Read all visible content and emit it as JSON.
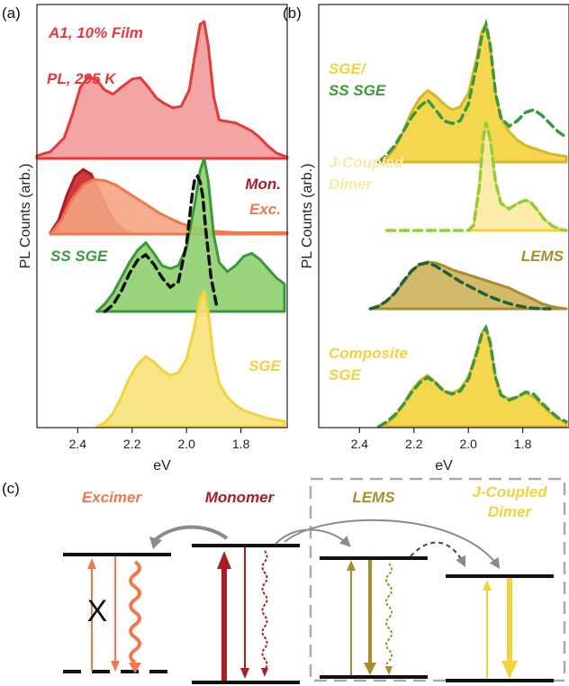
{
  "panel_labels": {
    "a": "(a)",
    "b": "(b)",
    "c": "(c)"
  },
  "colors": {
    "pl_red": "#e8393a",
    "pl_red_fill": "#f29a9a",
    "monomer_dark": "#a81e24",
    "excimer_orange": "#f2784b",
    "excimer_fill": "#f6b79c",
    "green": "#3a9a3a",
    "green_fill": "#8fcf6e",
    "yellow": "#f4d23c",
    "yellow_fill": "#f7e27a",
    "olive": "#a98d2c",
    "olive_fill": "#cdb35a",
    "light_yellow": "#fbeaa3",
    "gray": "#8a8a8a",
    "black": "#111111"
  },
  "chart_data": [
    {
      "type": "area",
      "panel": "a",
      "xlabel": "eV",
      "ylabel": "PL Counts (arb.)",
      "xlim": [
        2.55,
        1.63
      ],
      "xticks": [
        2.4,
        2.2,
        2.0,
        1.8
      ],
      "xticklabels": [
        "2.4",
        "2.2",
        "2.0",
        "1.8"
      ],
      "annotations": [
        {
          "text": "A1, 10% Film",
          "color": "#e8393a"
        },
        {
          "text": "PL, 295 K",
          "color": "#e8393a"
        },
        {
          "text": "Mon.",
          "color": "#a81e24"
        },
        {
          "text": "Exc.",
          "color": "#f2784b"
        },
        {
          "text": "SS SGE",
          "color": "#3a9a3a"
        },
        {
          "text": "SGE",
          "color": "#f4d23c"
        }
      ],
      "series": [
        {
          "name": "PL, 295 K",
          "style": "filled",
          "stroke": "#e8393a",
          "fill": "#f29a9a",
          "x": [
            2.55,
            2.5,
            2.45,
            2.42,
            2.39,
            2.36,
            2.33,
            2.3,
            2.27,
            2.24,
            2.2,
            2.17,
            2.14,
            2.11,
            2.08,
            2.05,
            2.02,
            1.99,
            1.97,
            1.95,
            1.935,
            1.92,
            1.9,
            1.88,
            1.85,
            1.82,
            1.79,
            1.76,
            1.73,
            1.7,
            1.67,
            1.63
          ],
          "y": [
            0.02,
            0.05,
            0.15,
            0.32,
            0.52,
            0.6,
            0.57,
            0.5,
            0.47,
            0.52,
            0.58,
            0.59,
            0.52,
            0.44,
            0.4,
            0.37,
            0.38,
            0.5,
            0.75,
            0.98,
            1.0,
            0.82,
            0.45,
            0.28,
            0.27,
            0.26,
            0.23,
            0.2,
            0.15,
            0.09,
            0.04,
            0.01
          ]
        },
        {
          "name": "Mon.",
          "style": "filled",
          "stroke": "#a81e24",
          "fill": "#c7232a",
          "x": [
            2.5,
            2.47,
            2.44,
            2.41,
            2.38,
            2.35,
            2.32,
            2.29,
            2.26,
            2.23,
            2.2
          ],
          "y": [
            0.02,
            0.2,
            0.55,
            0.82,
            0.92,
            0.85,
            0.6,
            0.35,
            0.15,
            0.05,
            0.0
          ]
        },
        {
          "name": "Exc.",
          "style": "filled",
          "stroke": "#f2784b",
          "fill": "#f4a383",
          "x": [
            2.5,
            2.46,
            2.42,
            2.38,
            2.34,
            2.3,
            2.26,
            2.22,
            2.18,
            2.14,
            2.1,
            2.06,
            2.02,
            1.98,
            1.94,
            1.9,
            1.86,
            1.82,
            1.78,
            1.74,
            1.7,
            1.66,
            1.63
          ],
          "y": [
            0.0,
            0.2,
            0.5,
            0.7,
            0.78,
            0.76,
            0.7,
            0.6,
            0.5,
            0.4,
            0.3,
            0.22,
            0.15,
            0.1,
            0.06,
            0.04,
            0.03,
            0.02,
            0.02,
            0.02,
            0.02,
            0.02,
            0.02
          ]
        },
        {
          "name": "SS SGE",
          "style": "filled",
          "stroke": "#3a9a3a",
          "fill": "#8fcf6e",
          "x": [
            2.33,
            2.3,
            2.27,
            2.24,
            2.21,
            2.18,
            2.15,
            2.12,
            2.09,
            2.06,
            2.03,
            2.0,
            1.97,
            1.95,
            1.935,
            1.92,
            1.9,
            1.88,
            1.85,
            1.82,
            1.79,
            1.76,
            1.73,
            1.7,
            1.67,
            1.64
          ],
          "y": [
            0.0,
            0.05,
            0.12,
            0.22,
            0.32,
            0.4,
            0.45,
            0.38,
            0.3,
            0.28,
            0.3,
            0.42,
            0.7,
            0.92,
            1.0,
            0.85,
            0.5,
            0.32,
            0.26,
            0.3,
            0.36,
            0.38,
            0.34,
            0.28,
            0.22,
            0.18
          ]
        },
        {
          "name": "",
          "style": "dashed",
          "stroke": "#111111",
          "x": [
            2.3,
            2.27,
            2.24,
            2.21,
            2.18,
            2.15,
            2.12,
            2.09,
            2.06,
            2.03,
            2.0,
            1.98,
            1.97,
            1.96,
            1.95,
            1.94,
            1.93,
            1.91,
            1.89
          ],
          "y": [
            0.0,
            0.05,
            0.15,
            0.28,
            0.38,
            0.42,
            0.35,
            0.25,
            0.18,
            0.22,
            0.5,
            0.85,
            0.98,
            1.0,
            0.96,
            0.85,
            0.62,
            0.25,
            0.05
          ]
        },
        {
          "name": "SGE",
          "style": "filled",
          "stroke": "#f4d23c",
          "fill": "#f7e27a",
          "x": [
            2.33,
            2.3,
            2.27,
            2.24,
            2.21,
            2.18,
            2.15,
            2.12,
            2.09,
            2.06,
            2.03,
            2.0,
            1.97,
            1.95,
            1.935,
            1.92,
            1.9,
            1.88,
            1.85,
            1.82,
            1.79,
            1.76,
            1.73,
            1.7,
            1.67,
            1.64
          ],
          "y": [
            0.0,
            0.03,
            0.1,
            0.22,
            0.36,
            0.46,
            0.52,
            0.48,
            0.42,
            0.38,
            0.4,
            0.5,
            0.75,
            0.95,
            1.0,
            0.85,
            0.5,
            0.32,
            0.22,
            0.16,
            0.12,
            0.1,
            0.08,
            0.06,
            0.05,
            0.04
          ]
        }
      ]
    },
    {
      "type": "area",
      "panel": "b",
      "xlabel": "eV",
      "ylabel": "PL Counts (arb.)",
      "xlim": [
        2.55,
        1.63
      ],
      "xticks": [
        2.4,
        2.2,
        2.0,
        1.8
      ],
      "xticklabels": [
        "2.4",
        "2.2",
        "2.0",
        "1.8"
      ],
      "annotations": [
        {
          "text": "SGE/",
          "color": "#f4d23c"
        },
        {
          "text": "SS SGE",
          "color": "#3a9a3a"
        },
        {
          "text": "J-Coupled",
          "color": "#fbeaa3"
        },
        {
          "text": "Dimer",
          "color": "#fbeaa3"
        },
        {
          "text": "LEMS",
          "color": "#a98d2c"
        },
        {
          "text": "Composite",
          "color": "#f4d23c"
        },
        {
          "text": "SGE",
          "color": "#f4d23c"
        }
      ],
      "series": [
        {
          "name": "SGE",
          "style": "filled",
          "stroke": "#d9b52c",
          "fill": "#f4d23c",
          "x": [
            2.33,
            2.3,
            2.27,
            2.24,
            2.21,
            2.18,
            2.15,
            2.12,
            2.09,
            2.06,
            2.03,
            2.0,
            1.97,
            1.95,
            1.935,
            1.92,
            1.9,
            1.88,
            1.85,
            1.82,
            1.79,
            1.76,
            1.73,
            1.7,
            1.67,
            1.64
          ],
          "y": [
            0.0,
            0.03,
            0.1,
            0.22,
            0.36,
            0.46,
            0.52,
            0.48,
            0.42,
            0.38,
            0.4,
            0.5,
            0.75,
            0.95,
            1.0,
            0.85,
            0.5,
            0.32,
            0.22,
            0.16,
            0.12,
            0.1,
            0.08,
            0.06,
            0.05,
            0.04
          ]
        },
        {
          "name": "SS SGE",
          "style": "dashed",
          "stroke": "#3a9a3a",
          "x": [
            2.33,
            2.3,
            2.27,
            2.24,
            2.21,
            2.18,
            2.15,
            2.12,
            2.09,
            2.06,
            2.03,
            2.0,
            1.97,
            1.95,
            1.935,
            1.92,
            1.9,
            1.88,
            1.85,
            1.82,
            1.79,
            1.76,
            1.73,
            1.7,
            1.67,
            1.64
          ],
          "y": [
            0.0,
            0.05,
            0.12,
            0.22,
            0.32,
            0.4,
            0.45,
            0.38,
            0.3,
            0.28,
            0.3,
            0.42,
            0.7,
            0.92,
            1.0,
            0.85,
            0.5,
            0.32,
            0.26,
            0.3,
            0.36,
            0.38,
            0.34,
            0.28,
            0.22,
            0.18
          ]
        },
        {
          "name": "J-Coupled Dimer",
          "style": "filled",
          "stroke": "#f4d23c",
          "fill": "#fbeaa3",
          "x": [
            2.0,
            1.98,
            1.96,
            1.945,
            1.935,
            1.92,
            1.9,
            1.88,
            1.85,
            1.82,
            1.79,
            1.77,
            1.75,
            1.72,
            1.69,
            1.66,
            1.64
          ],
          "y": [
            0.0,
            0.05,
            0.4,
            0.85,
            1.0,
            0.85,
            0.45,
            0.25,
            0.2,
            0.25,
            0.28,
            0.26,
            0.2,
            0.1,
            0.04,
            0.01,
            0.0
          ]
        },
        {
          "name": "",
          "style": "dashed",
          "stroke": "#8fcf3a",
          "x": [
            2.3,
            2.25,
            2.2,
            2.15,
            2.1,
            2.05,
            2.0,
            1.98,
            1.96,
            1.945,
            1.935,
            1.92,
            1.9,
            1.88,
            1.85,
            1.82,
            1.79,
            1.77,
            1.75,
            1.72,
            1.69,
            1.66,
            1.64
          ],
          "y": [
            0.0,
            0.0,
            0.0,
            0.0,
            0.0,
            0.0,
            0.0,
            0.05,
            0.4,
            0.85,
            1.0,
            0.85,
            0.45,
            0.25,
            0.2,
            0.25,
            0.28,
            0.26,
            0.2,
            0.1,
            0.04,
            0.01,
            0.0
          ]
        },
        {
          "name": "LEMS",
          "style": "filled",
          "stroke": "#a98d2c",
          "fill": "#cdb35a",
          "x": [
            2.36,
            2.33,
            2.3,
            2.27,
            2.24,
            2.21,
            2.18,
            2.15,
            2.12,
            2.09,
            2.06,
            2.03,
            2.0,
            1.97,
            1.94,
            1.91,
            1.88,
            1.85,
            1.82,
            1.79,
            1.76,
            1.73,
            1.7,
            1.67,
            1.64
          ],
          "y": [
            0.0,
            0.05,
            0.15,
            0.3,
            0.5,
            0.7,
            0.85,
            0.9,
            0.88,
            0.82,
            0.75,
            0.7,
            0.65,
            0.6,
            0.55,
            0.5,
            0.45,
            0.4,
            0.32,
            0.25,
            0.18,
            0.1,
            0.05,
            0.02,
            0.0
          ]
        },
        {
          "name": "",
          "style": "dashed",
          "stroke": "#1f5f3a",
          "x": [
            2.36,
            2.33,
            2.3,
            2.27,
            2.24,
            2.21,
            2.18,
            2.15,
            2.12,
            2.09,
            2.06,
            2.03,
            2.0,
            1.97,
            1.94,
            1.91,
            1.88,
            1.85,
            1.82,
            1.79,
            1.76,
            1.73,
            1.7
          ],
          "y": [
            0.0,
            0.05,
            0.15,
            0.3,
            0.52,
            0.72,
            0.85,
            0.88,
            0.82,
            0.72,
            0.62,
            0.52,
            0.44,
            0.36,
            0.28,
            0.21,
            0.15,
            0.1,
            0.06,
            0.03,
            0.01,
            0.0,
            0.0
          ]
        },
        {
          "name": "Composite SGE",
          "style": "filled",
          "stroke": "#d9b52c",
          "fill": "#f4d23c",
          "x": [
            2.33,
            2.3,
            2.27,
            2.24,
            2.21,
            2.18,
            2.15,
            2.12,
            2.09,
            2.06,
            2.03,
            2.0,
            1.97,
            1.95,
            1.935,
            1.92,
            1.9,
            1.88,
            1.85,
            1.82,
            1.79,
            1.76,
            1.73,
            1.7,
            1.67,
            1.64
          ],
          "y": [
            0.0,
            0.03,
            0.1,
            0.22,
            0.36,
            0.46,
            0.52,
            0.45,
            0.36,
            0.34,
            0.38,
            0.5,
            0.75,
            0.95,
            1.0,
            0.85,
            0.5,
            0.32,
            0.28,
            0.3,
            0.34,
            0.3,
            0.22,
            0.14,
            0.08,
            0.04
          ]
        },
        {
          "name": "",
          "style": "dashed",
          "stroke": "#3a9a3a",
          "x": [
            2.33,
            2.3,
            2.27,
            2.24,
            2.21,
            2.18,
            2.15,
            2.12,
            2.09,
            2.06,
            2.03,
            2.0,
            1.97,
            1.95,
            1.935,
            1.92,
            1.9,
            1.88,
            1.85,
            1.82,
            1.79,
            1.76,
            1.73,
            1.7,
            1.67,
            1.64
          ],
          "y": [
            0.0,
            0.05,
            0.12,
            0.22,
            0.34,
            0.44,
            0.5,
            0.44,
            0.36,
            0.33,
            0.36,
            0.48,
            0.74,
            0.94,
            1.0,
            0.85,
            0.5,
            0.32,
            0.27,
            0.3,
            0.35,
            0.33,
            0.24,
            0.16,
            0.09,
            0.05
          ]
        }
      ]
    }
  ],
  "diagram": {
    "labels": {
      "excimer": "Excimer",
      "monomer": "Monomer",
      "lems": "LEMS",
      "jcoupled_line1": "J-Coupled",
      "jcoupled_line2": "Dimer"
    },
    "cross_symbol": "X"
  }
}
